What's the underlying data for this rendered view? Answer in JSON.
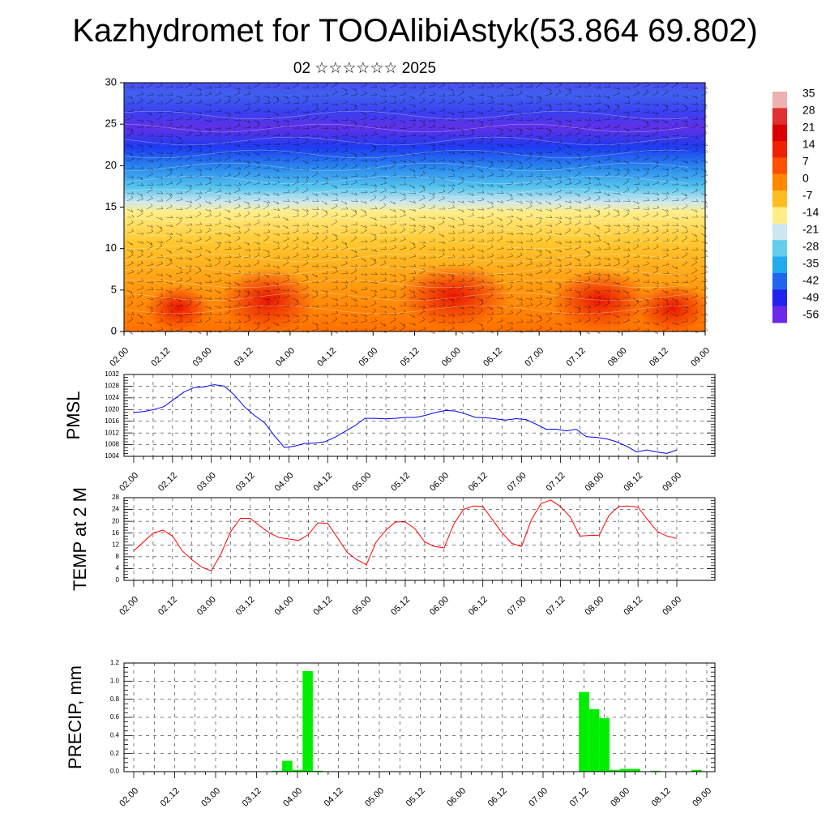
{
  "title": "Kazhydromet for TOOAlibiAstyk(53.864 69.802)",
  "subtitle": "02 ☆☆☆☆☆☆ 2025",
  "time_labels": [
    "02.00",
    "02.12",
    "03.00",
    "03.12",
    "04.00",
    "04.12",
    "05.00",
    "05.12",
    "06.00",
    "06.12",
    "07.00",
    "07.12",
    "08.00",
    "08.12",
    "09.00"
  ],
  "colors": {
    "pmsl_line": "#0000ff",
    "temp_line": "#ff0000",
    "precip_bar": "#00ee00"
  },
  "colorbar": {
    "labels": [
      "35",
      "28",
      "21",
      "14",
      "7",
      "0",
      "-7",
      "-14",
      "-21",
      "-28",
      "-35",
      "-42",
      "-49",
      "-56"
    ],
    "colors": [
      "#f0b0b0",
      "#e03030",
      "#d80000",
      "#ee2000",
      "#ff5000",
      "#ff8800",
      "#ffbb22",
      "#ffee88",
      "#cce8f0",
      "#66ccee",
      "#22aaee",
      "#2266ee",
      "#2222ee",
      "#6a2ae8"
    ]
  },
  "chart_data": [
    {
      "type": "heatmap",
      "title": "",
      "ylabel": "",
      "ylim": [
        0,
        30
      ],
      "yticks": [
        "0",
        "5",
        "10",
        "15",
        "20",
        "25",
        "30"
      ],
      "x": [
        "02.00",
        "02.12",
        "03.00",
        "03.12",
        "04.00",
        "04.12",
        "05.00",
        "05.12",
        "06.00",
        "06.12",
        "07.00",
        "07.12",
        "08.00",
        "08.12",
        "09.00"
      ],
      "value_range": [
        -56,
        35
      ],
      "overlay": "wind barbs and temperature contours"
    },
    {
      "type": "line",
      "ylabel": "PMSL",
      "ylim": [
        1004,
        1032
      ],
      "yticks": [
        "1004",
        "1008",
        "1012",
        "1016",
        "1020",
        "1024",
        "1028",
        "1032"
      ],
      "series": [
        {
          "values": [
            1019,
            1019.3,
            1020,
            1021,
            1023.5,
            1026,
            1027.5,
            1027.8,
            1028.5,
            1028,
            1025,
            1021,
            1018,
            1015.5,
            1011,
            1007,
            1007.5,
            1008.4,
            1008.5,
            1009,
            1010.5,
            1012.5,
            1014.5,
            1017,
            1017,
            1016.8,
            1017,
            1017.3,
            1017.3,
            1018,
            1019,
            1019.7,
            1019.5,
            1018.5,
            1017.3,
            1017.2,
            1016.8,
            1016.4,
            1016.9,
            1016.6,
            1015,
            1013.3,
            1013.3,
            1012.7,
            1013.3,
            1010.7,
            1010.5,
            1010,
            1009,
            1007.5,
            1005.5,
            1006.2,
            1005.5,
            1005,
            1006.2
          ]
        }
      ]
    },
    {
      "type": "line",
      "ylabel": "TEMP at 2 M",
      "ylim": [
        0,
        28
      ],
      "yticks": [
        "0",
        "4",
        "8",
        "12",
        "16",
        "20",
        "24",
        "28"
      ],
      "series": [
        {
          "values": [
            10,
            13,
            16,
            17,
            15,
            10,
            7,
            4.5,
            3.2,
            9,
            16.5,
            21,
            21,
            18.5,
            16,
            14.5,
            14,
            13.5,
            15.5,
            19.5,
            19.3,
            14.5,
            9.5,
            7,
            5.3,
            13,
            17,
            19.8,
            19.8,
            17.5,
            13,
            11.5,
            11,
            19,
            24,
            25.2,
            25,
            20.5,
            16,
            12.5,
            11.5,
            20.5,
            26,
            27.2,
            25,
            21.5,
            15,
            15.2,
            15.3,
            22,
            25,
            25.2,
            24.8,
            20.5,
            16.5,
            15,
            14.2
          ]
        }
      ]
    },
    {
      "type": "bar",
      "ylabel": "PRECIP, mm",
      "ylim": [
        0,
        1.2
      ],
      "yticks": [
        "0.0",
        "0.2",
        "0.4",
        "0.6",
        "0.8",
        "1.0",
        "1.2"
      ],
      "bars": [
        {
          "x": 14,
          "value": 0.01
        },
        {
          "x": 15,
          "value": 0.12
        },
        {
          "x": 16,
          "value": 0.02
        },
        {
          "x": 17,
          "value": 1.11
        },
        {
          "x": 18,
          "value": 0.01
        },
        {
          "x": 44,
          "value": 0.88
        },
        {
          "x": 45,
          "value": 0.69
        },
        {
          "x": 46,
          "value": 0.59
        },
        {
          "x": 47,
          "value": 0.02
        },
        {
          "x": 48,
          "value": 0.03
        },
        {
          "x": 49,
          "value": 0.03
        },
        {
          "x": 51,
          "value": 0.01
        },
        {
          "x": 55,
          "value": 0.02
        }
      ]
    }
  ]
}
